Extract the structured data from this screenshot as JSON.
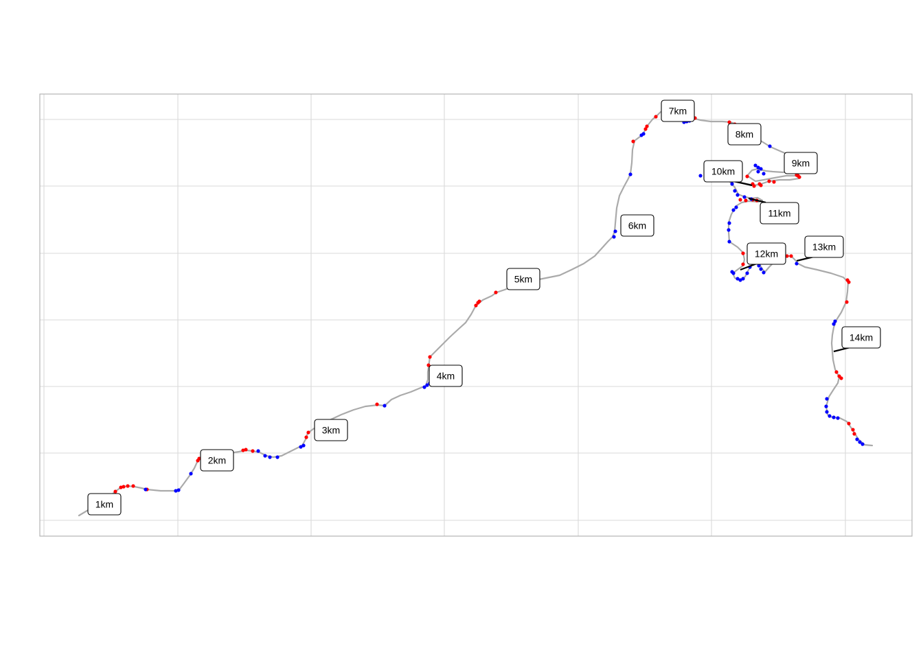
{
  "map": {
    "colors": {
      "panel_border": "#b3b3b3",
      "grid": "#d9d9d9",
      "route": "#aaaaaa",
      "speed_fast": "#ff0000",
      "speed_slow": "#0000ff",
      "label_border": "#000000",
      "label_fill": "#ffffff",
      "leader_line": "#000000"
    }
  },
  "km_labels": [
    {
      "text": "1km"
    },
    {
      "text": "2km"
    },
    {
      "text": "3km"
    },
    {
      "text": "4km"
    },
    {
      "text": "5km"
    },
    {
      "text": "6km"
    },
    {
      "text": "7km"
    },
    {
      "text": "8km"
    },
    {
      "text": "9km"
    },
    {
      "text": "10km"
    },
    {
      "text": "11km"
    },
    {
      "text": "12km"
    },
    {
      "text": "13km"
    },
    {
      "text": "14km"
    }
  ]
}
